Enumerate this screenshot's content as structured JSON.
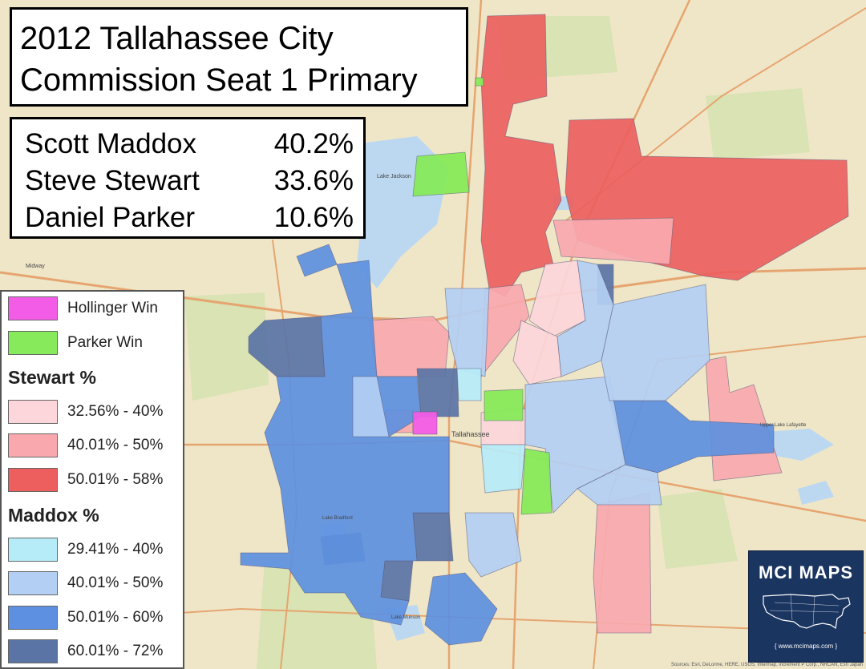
{
  "map": {
    "title_line1": "2012 Tallahassee City",
    "title_line2": "Commission Seat 1 Primary",
    "results": [
      {
        "name": "Scott Maddox",
        "value": "40.2%"
      },
      {
        "name": "Steve Stewart",
        "value": "33.6%"
      },
      {
        "name": "Daniel Parker",
        "value": "10.6%"
      }
    ],
    "colors": {
      "hollinger_win": "#f25ce6",
      "parker_win": "#87ea5a",
      "stewart_1": "#fcd6da",
      "stewart_2": "#f9a9ae",
      "stewart_3": "#ec5f5e",
      "maddox_1": "#b6ecf8",
      "maddox_2": "#b3cff3",
      "maddox_3": "#5d90e0",
      "maddox_4": "#5a74a6",
      "water": "#bcd8f1",
      "land": "#efe6c8",
      "park": "#d9e3b3",
      "road": "#e6a570"
    },
    "basemap_labels": {
      "city": "Tallahassee",
      "lake_jackson": "Lake Jackson",
      "midway": "Midway",
      "lake_lafayette": "Upper Lake Lafayette",
      "lake_munson": "Lake Munson",
      "lake_bradford": "Lake Bradford"
    }
  },
  "legend": {
    "hollinger": "Hollinger Win",
    "parker": "Parker Win",
    "stewart_heading": "Stewart %",
    "stewart_bins": [
      "32.56% - 40%",
      "40.01% - 50%",
      "50.01% - 58%"
    ],
    "maddox_heading": "Maddox %",
    "maddox_bins": [
      "29.41% - 40%",
      "40.01% - 50%",
      "50.01% - 60%",
      "60.01% - 72%"
    ]
  },
  "logo": {
    "text": "MCI MAPS",
    "url": "{ www.mcimaps.com }"
  },
  "attribution": "Sources: Esri, DeLorme, HERE, USGS, Intermap, increment P Corp., NRCAN, Esri Japan"
}
